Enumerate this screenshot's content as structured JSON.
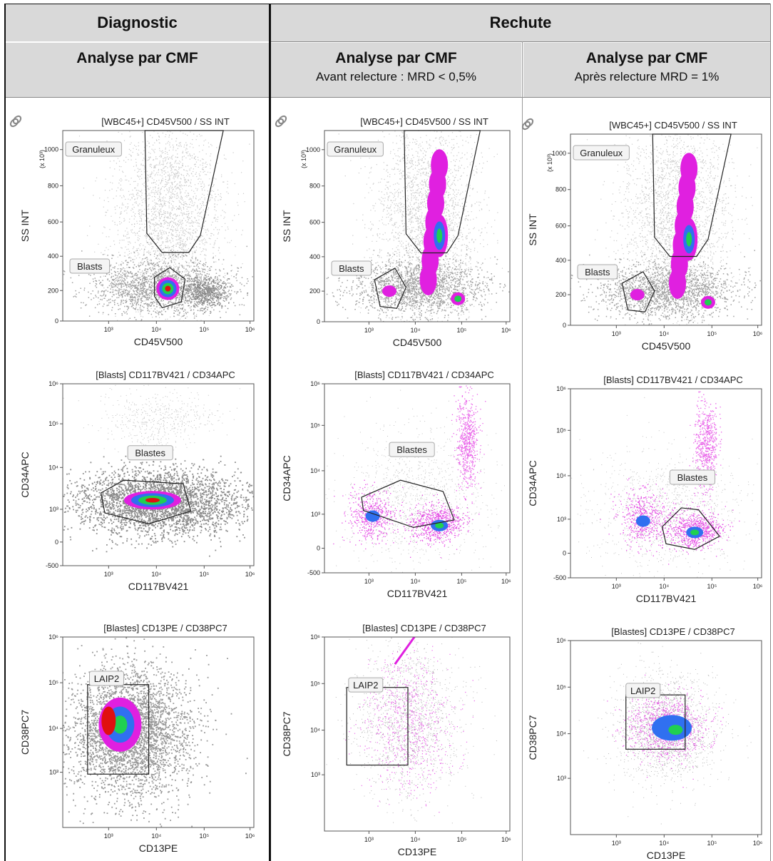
{
  "headers": {
    "diagnostic": "Diagnostic",
    "rechute": "Rechute",
    "columns": [
      {
        "title": "Analyse par CMF",
        "subtitle": ""
      },
      {
        "title": "Analyse par CMF",
        "subtitle": "Avant relecture : MRD < 0,5%"
      },
      {
        "title": "Analyse par CMF",
        "subtitle": "Après relecture MRD = 1%"
      }
    ]
  },
  "plots": {
    "row1": {
      "title": "[WBC45+] CD45V500 / SS INT",
      "xlabel": "CD45V500",
      "ylabel": "SS INT",
      "yunit": "(x 10³)",
      "yticks": [
        "1000",
        "800",
        "600",
        "400",
        "200",
        "0"
      ],
      "xticks": [
        "10³",
        "10⁴",
        "10⁵",
        "10⁶"
      ],
      "gates": [
        "Granuleux",
        "Blasts"
      ]
    },
    "row2": {
      "title": "[Blasts] CD117BV421 / CD34APC",
      "xlabel": "CD117BV421",
      "ylabel": "CD34APC",
      "yticks": [
        "10⁶",
        "10⁵",
        "10⁴",
        "10³",
        "0",
        "-500"
      ],
      "xticks": [
        "10³",
        "10⁴",
        "10⁵",
        "10⁶"
      ],
      "gate": "Blastes"
    },
    "row3": {
      "title": "[Blastes] CD13PE / CD38PC7",
      "xlabel": "CD13PE",
      "ylabel": "CD38PC7",
      "yticks": [
        "10⁶",
        "10⁵",
        "10⁴",
        "10³"
      ],
      "xticks": [
        "10³",
        "10⁴",
        "10⁵",
        "10⁶"
      ],
      "gate": "LAIP2"
    }
  },
  "colors": {
    "header_bg": "#d9d9d9",
    "gray_events": "#8a8a8a",
    "magenta": "#e020e0",
    "blue": "#3070f0",
    "green": "#20d050",
    "red": "#e01010"
  }
}
